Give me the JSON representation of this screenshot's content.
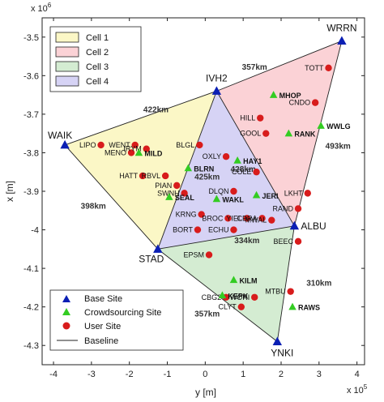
{
  "chart_data": {
    "type": "scatter",
    "xlabel": "y [m]",
    "ylabel": "x [m]",
    "x_exponent": "x 10^5",
    "y_exponent": "x 10^6",
    "x_exponent_text": "x 10",
    "x_exponent_power": "5",
    "y_exponent_text": "x 10",
    "y_exponent_power": "6",
    "xlim": [
      -4.3,
      4.2
    ],
    "ylim": [
      -4.35,
      -3.45
    ],
    "xticks": [
      -4,
      -3,
      -2,
      -1,
      0,
      1,
      2,
      3,
      4
    ],
    "yticks": [
      -3.5,
      -3.6,
      -3.7,
      -3.8,
      -3.9,
      -4.0,
      -4.1,
      -4.2,
      -4.3
    ],
    "xtick_labels": [
      "-4",
      "-3",
      "-2",
      "-1",
      "0",
      "1",
      "2",
      "3",
      "4"
    ],
    "ytick_labels": [
      "-3.5",
      "-3.6",
      "-3.7",
      "-3.8",
      "-3.9",
      "-4",
      "-4.1",
      "-4.2",
      "-4.3"
    ],
    "grid": false,
    "cells": [
      {
        "name": "Cell 1",
        "color": "#fbf7c6",
        "vertices": [
          "WAIK",
          "IVH2",
          "STAD"
        ]
      },
      {
        "name": "Cell 2",
        "color": "#fbd2d6",
        "vertices": [
          "IVH2",
          "WRRN",
          "ALBU"
        ]
      },
      {
        "name": "Cell 3",
        "color": "#d4ecd2",
        "vertices": [
          "STAD",
          "ALBU",
          "YNKI"
        ]
      },
      {
        "name": "Cell 4",
        "color": "#d6d3f5",
        "vertices": [
          "IVH2",
          "ALBU",
          "STAD"
        ]
      }
    ],
    "base_sites": [
      {
        "name": "WAIK",
        "y": -3.7,
        "x": -3.78
      },
      {
        "name": "IVH2",
        "y": 0.3,
        "x": -3.64
      },
      {
        "name": "WRRN",
        "y": 3.6,
        "x": -3.51
      },
      {
        "name": "ALBU",
        "y": 2.35,
        "x": -3.99
      },
      {
        "name": "STAD",
        "y": -1.25,
        "x": -4.05
      },
      {
        "name": "YNKI",
        "y": 1.9,
        "x": -4.29
      }
    ],
    "crowdsourcing_sites": [
      {
        "name": "MILD",
        "y": -1.75,
        "x": -3.8
      },
      {
        "name": "BLRN",
        "y": -0.45,
        "x": -3.84
      },
      {
        "name": "SEAL",
        "y": -0.95,
        "x": -3.915
      },
      {
        "name": "WAKL",
        "y": 0.3,
        "x": -3.92
      },
      {
        "name": "HAY1",
        "y": 0.85,
        "x": -3.82
      },
      {
        "name": "JERI",
        "y": 1.35,
        "x": -3.91
      },
      {
        "name": "MHOP",
        "y": 1.8,
        "x": -3.65
      },
      {
        "name": "RANK",
        "y": 2.2,
        "x": -3.75
      },
      {
        "name": "WWLG",
        "y": 3.05,
        "x": -3.73
      },
      {
        "name": "KILM",
        "y": 0.75,
        "x": -4.13
      },
      {
        "name": "RAWS",
        "y": 2.3,
        "x": -4.2
      },
      {
        "name": "KEPK",
        "y": 0.45,
        "x": -4.17
      }
    ],
    "user_sites": [
      {
        "name": "LIPO",
        "y": -2.75,
        "x": -3.78
      },
      {
        "name": "WENT",
        "y": -1.85,
        "x": -3.78
      },
      {
        "name": "MENO",
        "y": -1.95,
        "x": -3.8
      },
      {
        "name": "IRYM",
        "y": -1.55,
        "x": -3.79
      },
      {
        "name": "HATT",
        "y": -1.65,
        "x": -3.86
      },
      {
        "name": "RBVL",
        "y": -1.05,
        "x": -3.86
      },
      {
        "name": "PIAN",
        "y": -0.75,
        "x": -3.885
      },
      {
        "name": "SWNH",
        "y": -0.55,
        "x": -3.905
      },
      {
        "name": "BLGL",
        "y": -0.15,
        "x": -3.78
      },
      {
        "name": "OXLY",
        "y": 0.55,
        "x": -3.81
      },
      {
        "name": "HILL",
        "y": 1.45,
        "x": -3.71
      },
      {
        "name": "GOOL",
        "y": 1.6,
        "x": -3.75
      },
      {
        "name": "CNDO",
        "y": 2.9,
        "x": -3.67
      },
      {
        "name": "TOTT",
        "y": 3.25,
        "x": -3.58
      },
      {
        "name": "COLE",
        "y": 1.35,
        "x": -3.85
      },
      {
        "name": "LKHT",
        "y": 2.7,
        "x": -3.905
      },
      {
        "name": "RAND",
        "y": 2.45,
        "x": -3.945
      },
      {
        "name": "DLQN",
        "y": 0.75,
        "x": -3.9
      },
      {
        "name": "KRNG",
        "y": -0.1,
        "x": -3.96
      },
      {
        "name": "BROC",
        "y": 0.6,
        "x": -3.97
      },
      {
        "name": "YIEL",
        "y": 1.1,
        "x": -3.97
      },
      {
        "name": "CBRA",
        "y": 1.5,
        "x": -3.97
      },
      {
        "name": "MWAL",
        "y": 1.75,
        "x": -3.975
      },
      {
        "name": "BORT",
        "y": -0.2,
        "x": -4.0
      },
      {
        "name": "ECHU",
        "y": 0.75,
        "x": -4.0
      },
      {
        "name": "BEEC",
        "y": 2.45,
        "x": -4.03
      },
      {
        "name": "EPSM",
        "y": 0.1,
        "x": -4.065
      },
      {
        "name": "MTBU",
        "y": 2.25,
        "x": -4.16
      },
      {
        "name": "CBG2",
        "y": 0.55,
        "x": -4.175
      },
      {
        "name": "WORI",
        "y": 1.3,
        "x": -4.175
      },
      {
        "name": "CLYT",
        "y": 0.95,
        "x": -4.2
      }
    ],
    "distances": [
      {
        "text": "422km",
        "y": -1.3,
        "x": -3.695
      },
      {
        "text": "357km",
        "y": 1.3,
        "x": -3.585
      },
      {
        "text": "493km",
        "y": 3.5,
        "x": -3.79
      },
      {
        "text": "398km",
        "y": -2.95,
        "x": -3.945
      },
      {
        "text": "425km",
        "y": 0.05,
        "x": -3.87
      },
      {
        "text": "428km",
        "y": 1.0,
        "x": -3.85
      },
      {
        "text": "334km",
        "y": 1.1,
        "x": -4.035
      },
      {
        "text": "310km",
        "y": 3.0,
        "x": -4.145
      },
      {
        "text": "357km",
        "y": 0.05,
        "x": -4.225
      }
    ],
    "legend": {
      "placement": "bottom-left",
      "entries": [
        "Base Site",
        "Crowdsourcing Site",
        "User Site",
        "Baseline"
      ]
    },
    "cell_legend": {
      "placement": "top-left",
      "entries": [
        "Cell 1",
        "Cell 2",
        "Cell 3",
        "Cell 4"
      ]
    },
    "colors": {
      "base_site": "#0b1fb4",
      "crowdsourcing_site": "#33cc22",
      "user_site": "#d81c1c",
      "baseline": "#222222"
    }
  }
}
